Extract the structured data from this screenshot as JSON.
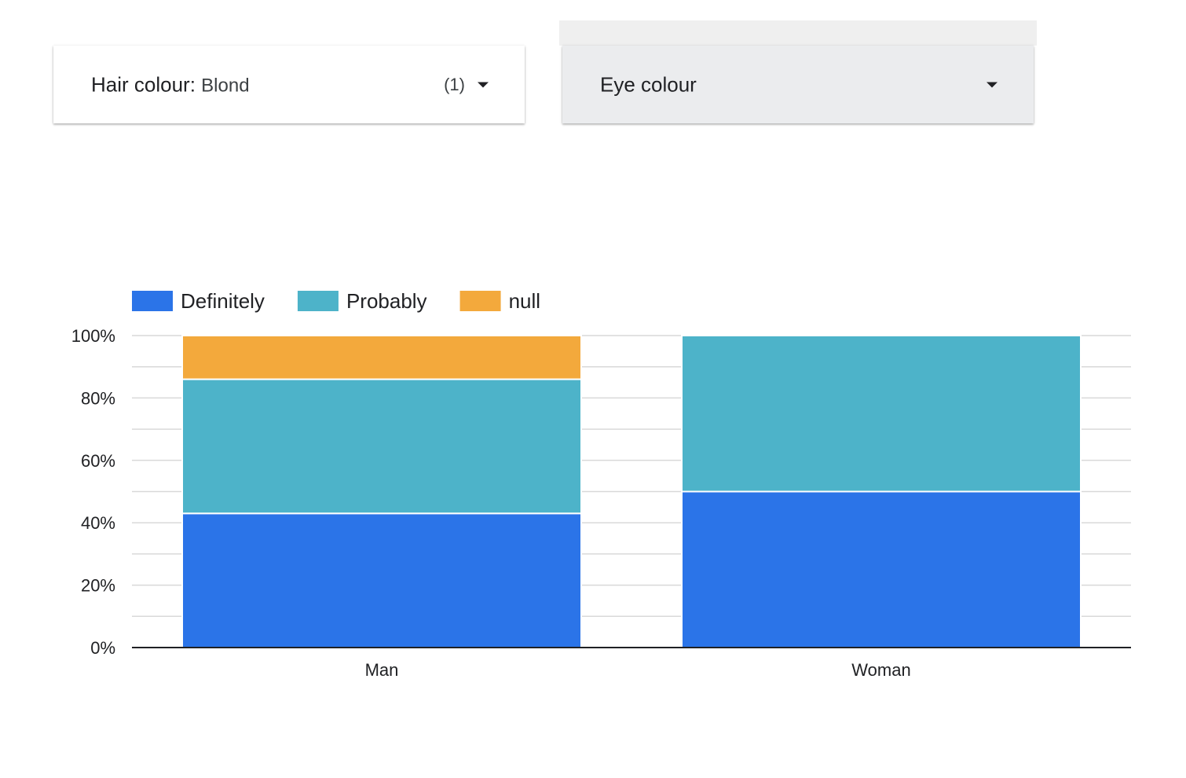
{
  "filters": {
    "hair": {
      "label": "Hair colour",
      "separator": ": ",
      "value": "Blond",
      "count": "(1)"
    },
    "eye": {
      "label": "Eye colour"
    }
  },
  "chart_data": {
    "type": "bar",
    "stacked": true,
    "categories": [
      "Man",
      "Woman"
    ],
    "series": [
      {
        "name": "Definitely",
        "color": "#2b74e8",
        "values": [
          43,
          50
        ]
      },
      {
        "name": "Probably",
        "color": "#4db3c9",
        "values": [
          43,
          50
        ]
      },
      {
        "name": "null",
        "color": "#f3a93c",
        "values": [
          14,
          0
        ]
      }
    ],
    "ylim": [
      0,
      100
    ],
    "yticks": [
      "0%",
      "20%",
      "40%",
      "60%",
      "80%",
      "100%"
    ],
    "legend_position": "top-left",
    "grid": true
  }
}
